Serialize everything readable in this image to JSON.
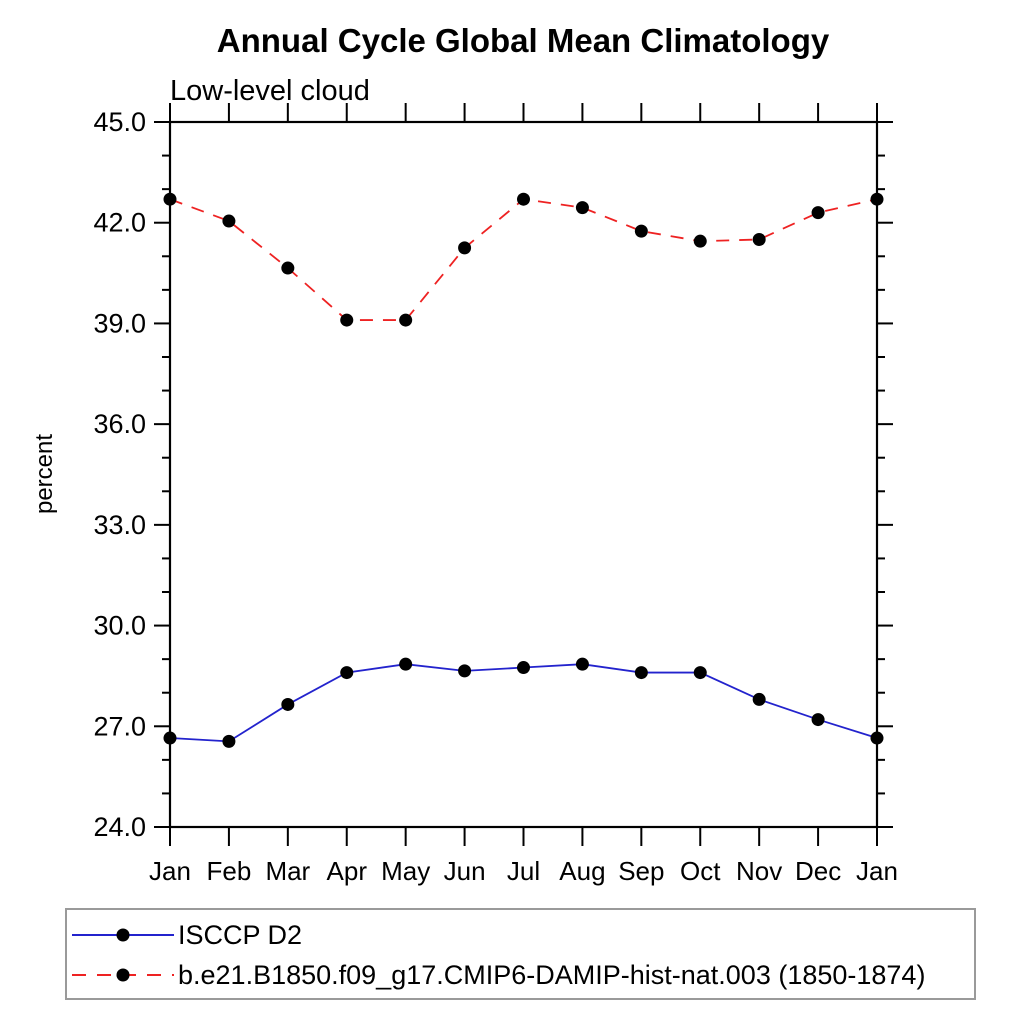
{
  "chart": {
    "title": "Annual Cycle Global Mean Climatology",
    "subtitle": "Low-level cloud"
  },
  "chart_data": {
    "type": "line",
    "title": "Annual Cycle Global Mean Climatology",
    "subtitle": "Low-level cloud",
    "xlabel": "",
    "ylabel": "percent",
    "ylim": [
      24.0,
      45.0
    ],
    "ytick_step": 3,
    "yminor_step": 1,
    "ytick_labels": [
      "24.0",
      "27.0",
      "30.0",
      "33.0",
      "36.0",
      "39.0",
      "42.0",
      "45.0"
    ],
    "grid": false,
    "legend_position": "bottom",
    "categories": [
      "Jan",
      "Feb",
      "Mar",
      "Apr",
      "May",
      "Jun",
      "Jul",
      "Aug",
      "Sep",
      "Oct",
      "Nov",
      "Dec",
      "Jan"
    ],
    "series": [
      {
        "name": "ISCCP D2",
        "color": "#2323cd",
        "line_style": "solid",
        "marker": "circle",
        "marker_color": "#000000",
        "values": [
          26.65,
          26.55,
          27.65,
          28.6,
          28.85,
          28.65,
          28.75,
          28.85,
          28.6,
          28.6,
          27.8,
          27.2,
          26.65
        ]
      },
      {
        "name": "b.e21.B1850.f09_g17.CMIP6-DAMIP-hist-nat.003 (1850-1874)",
        "color": "#ee2222",
        "line_style": "dashed",
        "marker": "circle",
        "marker_color": "#000000",
        "values": [
          42.7,
          42.05,
          40.65,
          39.1,
          39.1,
          41.25,
          42.7,
          42.45,
          41.75,
          41.45,
          41.5,
          42.3,
          42.7
        ]
      }
    ],
    "axis_color": "#000000"
  }
}
